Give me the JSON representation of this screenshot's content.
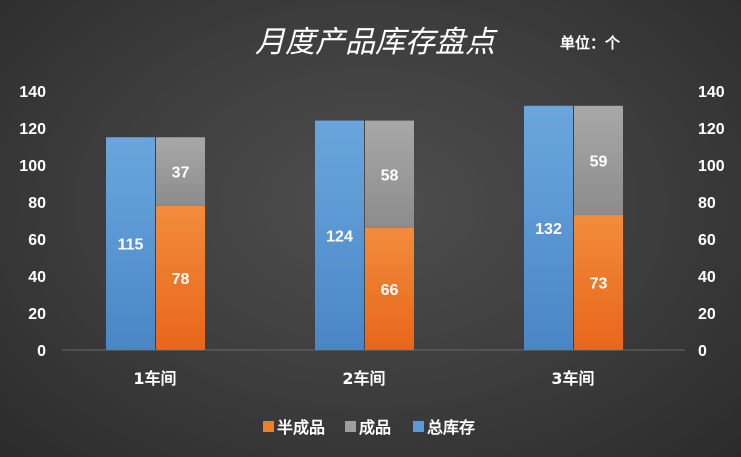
{
  "chart_data": {
    "type": "bar",
    "title": "月度产品库存盘点",
    "unit": "单位：个",
    "categories": [
      "1车间",
      "2车间",
      "3车间"
    ],
    "series": [
      {
        "name": "半成品",
        "values": [
          78,
          66,
          73
        ],
        "color": "#f07d2a"
      },
      {
        "name": "成品",
        "values": [
          37,
          58,
          59
        ],
        "color": "#9e9e9e"
      },
      {
        "name": "总库存",
        "values": [
          115,
          124,
          132
        ],
        "color": "#5b9bd5"
      }
    ],
    "ylim": [
      0,
      140
    ],
    "yticks": [
      0,
      20,
      40,
      60,
      80,
      100,
      120,
      140
    ],
    "y2ticks": [
      0,
      20,
      40,
      60,
      80,
      100,
      120,
      140
    ],
    "stacked_series": [
      "半成品",
      "成品"
    ],
    "grid": false,
    "legend_position": "bottom"
  }
}
